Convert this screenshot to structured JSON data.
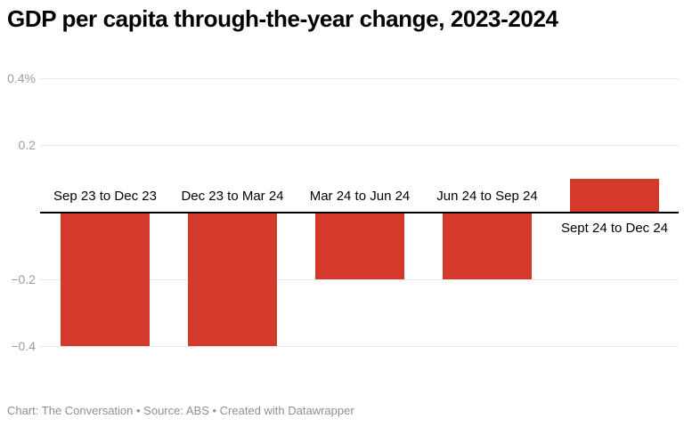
{
  "header": {
    "title": "GDP per capita through-the-year change, 2023-2024"
  },
  "footer": {
    "text": "Chart: The Conversation • Source: ABS • Created with Datawrapper"
  },
  "colors": {
    "background": "#ffffff",
    "bar": "#d33a2b",
    "gridline": "#e8e8e8",
    "axis_label": "#9c9c9c",
    "zero_line": "#000000",
    "bar_label": "#000000",
    "title": "#000000",
    "footer_text": "#8f8f8f"
  },
  "chart_data": {
    "type": "bar",
    "title": "GDP per capita through-the-year change, 2023-2024",
    "categories": [
      "Sep 23 to Dec 23",
      "Dec 23 to Mar 24",
      "Mar 24 to Jun 24",
      "Jun 24 to Sep 24",
      "Sept 24 to Dec 24"
    ],
    "values": [
      -0.4,
      -0.4,
      -0.2,
      -0.2,
      0.1
    ],
    "value_suffix": "%",
    "ylim": [
      -0.4,
      0.4
    ],
    "yticks": [
      {
        "label": "0.4%",
        "value": 0.4
      },
      {
        "label": "0.2",
        "value": 0.2
      },
      {
        "label": "−0.2",
        "value": -0.2
      },
      {
        "label": "−0.4",
        "value": -0.4
      }
    ],
    "baseline": 0,
    "grid": true,
    "legend": false,
    "xlabel": "",
    "ylabel": ""
  }
}
